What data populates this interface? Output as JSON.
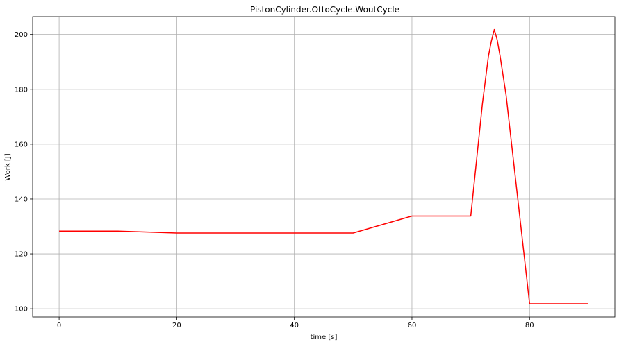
{
  "chart_data": {
    "type": "line",
    "title": "PistonCylinder.OttoCycle.WoutCycle",
    "xlabel": "time [s]",
    "ylabel": "Work [J]",
    "xlim": [
      -4.5,
      94.5
    ],
    "ylim": [
      97,
      206.5
    ],
    "xticks": [
      0,
      20,
      40,
      60,
      80
    ],
    "yticks": [
      100,
      120,
      140,
      160,
      180,
      200
    ],
    "xtick_labels": [
      "0",
      "20",
      "40",
      "60",
      "80"
    ],
    "ytick_labels": [
      "100",
      "120",
      "140",
      "160",
      "180",
      "200"
    ],
    "grid": true,
    "legend": "none",
    "series": [
      {
        "color": "#ff0000",
        "x": [
          0,
          10,
          20,
          30,
          40,
          50,
          60,
          70,
          72,
          73,
          73.5,
          74,
          74.5,
          75,
          76,
          80,
          90
        ],
        "y": [
          128.3,
          128.3,
          127.6,
          127.6,
          127.6,
          127.6,
          133.8,
          133.8,
          175,
          192,
          197.5,
          201.8,
          198,
          192,
          178,
          101.8,
          101.8
        ]
      }
    ]
  }
}
